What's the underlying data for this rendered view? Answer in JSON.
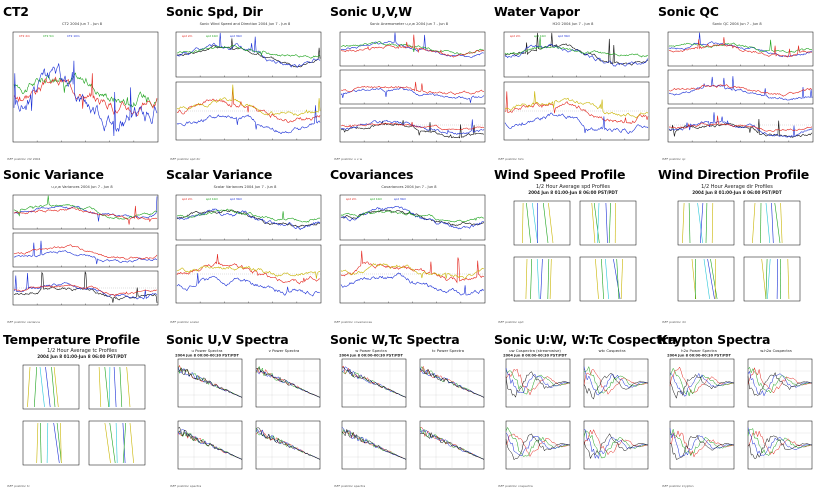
{
  "titles": [
    "CT2",
    "Sonic Spd, Dir",
    "Sonic U,V,W",
    "Water Vapor",
    "Sonic QC",
    "Sonic Variance",
    "Scalar Variance",
    "Covariances",
    "Wind Speed Profile",
    "Wind Direction Profile",
    "Temperature Profile",
    "Sonic U,V Spectra",
    "Sonic W,Tc Spectra",
    "Sonic U:W, W:Tc Cospectra",
    "Krypton Spectra"
  ],
  "thumbs": [
    {
      "head": "CT2 2004 Jun 7 - Jun 8",
      "sub": [
        "",
        ""
      ],
      "foot": "ISFF postdoc ct2 2004"
    },
    {
      "head": "Sonic Wind Speed and Direction 2004 Jun 7 - Jun 8",
      "sub": [
        "",
        ""
      ],
      "foot": "ISFF postdoc spd dir"
    },
    {
      "head": "Sonic Anemometer u,v,w 2004 Jun 7 - Jun 8",
      "sub": [
        "",
        ""
      ],
      "foot": "ISFF postdoc u v w"
    },
    {
      "head": "H2O 2004 Jun 7 - Jun 8",
      "sub": [
        "",
        ""
      ],
      "foot": "ISFF postdoc h2o"
    },
    {
      "head": "Sonic QC 2004 Jun 7 - Jun 8",
      "sub": [
        "",
        ""
      ],
      "foot": "ISFF postdoc qc"
    },
    {
      "head": "u,v,w Variances 2004 Jun 7 - Jun 8",
      "sub": [
        "",
        ""
      ],
      "foot": "ISFF postdoc variance"
    },
    {
      "head": "Scalar Variances 2004 Jun 7 - Jun 8",
      "sub": [
        "",
        ""
      ],
      "foot": "ISFF postdoc scalar"
    },
    {
      "head": "Covariances 2004 Jun 7 - Jun 8",
      "sub": [
        "",
        ""
      ],
      "foot": "ISFF postdoc covariances"
    },
    {
      "head": "1/2 Hour Average spd Profiles",
      "sub": [
        "2004 Jun 8 01:00-Jun 8 06:00 PST/PDT",
        ""
      ],
      "foot": "ISFF postdoc spd"
    },
    {
      "head": "1/2 Hour Average dir Profiles",
      "sub": [
        "2004 Jun 8 01:00-Jun 8 06:00 PST/PDT",
        ""
      ],
      "foot": "ISFF postdoc dir"
    },
    {
      "head": "1/2 Hour Average tc Profiles",
      "sub": [
        "2004 Jun 8 01:00-Jun 8 06:00 PST/PDT",
        ""
      ],
      "foot": "ISFF postdoc tc"
    },
    {
      "head": "u Power Spectra",
      "sub": [
        "2004 Jun 8 00:00-00:30 PST/PDT",
        "v Power Spectra"
      ],
      "foot": "ISFF postdoc spectra"
    },
    {
      "head": "w Power Spectra",
      "sub": [
        "2004 Jun 8 00:00-00:30 PST/PDT",
        "tc Power Spectra"
      ],
      "foot": "ISFF postdoc spectra"
    },
    {
      "head": "uw Cospectra (streamwise)",
      "sub": [
        "2004 Jun 8 00:00-00:30 PST/PDT",
        "wtc Cospectra"
      ],
      "foot": "ISFF postdoc cospectra"
    },
    {
      "head": "h2o Power Spectra",
      "sub": [
        "2004 Jun 8 00:00-00:30 PST/PDT",
        "w.h2o Cospectra"
      ],
      "foot": "ISFF postdoc krypton"
    }
  ],
  "colors": {
    "blue": "#1a2fd6",
    "red": "#e3261e",
    "green": "#1da31d",
    "yellow": "#c8b400",
    "black": "#111111",
    "cyan": "#27c6d8"
  }
}
